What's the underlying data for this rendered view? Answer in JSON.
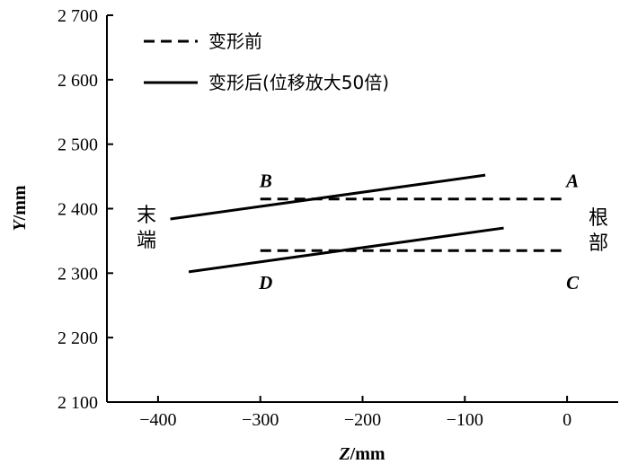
{
  "chart_data": {
    "type": "line",
    "xlabel_italic": "Z",
    "xlabel_unit": "/mm",
    "ylabel_italic": "Y",
    "ylabel_unit": "/mm",
    "xlim": [
      -450,
      50
    ],
    "ylim": [
      2100,
      2700
    ],
    "xticks": [
      {
        "value": -400,
        "label": "−400"
      },
      {
        "value": -300,
        "label": "−300"
      },
      {
        "value": -200,
        "label": "−200"
      },
      {
        "value": -100,
        "label": "−100"
      },
      {
        "value": 0,
        "label": "0"
      }
    ],
    "yticks": [
      {
        "value": 2100,
        "label": "2 100"
      },
      {
        "value": 2200,
        "label": "2 200"
      },
      {
        "value": 2300,
        "label": "2 300"
      },
      {
        "value": 2400,
        "label": "2 400"
      },
      {
        "value": 2500,
        "label": "2 500"
      },
      {
        "value": 2600,
        "label": "2 600"
      },
      {
        "value": 2700,
        "label": "2 700"
      }
    ],
    "legend": [
      {
        "label": "变形前",
        "style": "dashed"
      },
      {
        "label": "变形后(位移放大50倍)",
        "style": "solid"
      }
    ],
    "series": [
      {
        "name": "变形前",
        "style": "dashed",
        "x": [
          -300,
          0
        ],
        "y": [
          2415,
          2415
        ]
      },
      {
        "name": "变形前",
        "style": "dashed",
        "x": [
          -300,
          0
        ],
        "y": [
          2335,
          2335
        ]
      },
      {
        "name": "变形后(位移放大50倍)",
        "style": "solid",
        "x": [
          -388,
          -80
        ],
        "y": [
          2384,
          2452
        ]
      },
      {
        "name": "变形后(位移放大50倍)",
        "style": "solid",
        "x": [
          -370,
          -62
        ],
        "y": [
          2302,
          2370
        ]
      }
    ],
    "point_labels": [
      {
        "text": "A",
        "x": 0,
        "y": 2415,
        "pos": "above"
      },
      {
        "text": "B",
        "x": -300,
        "y": 2415,
        "pos": "above"
      },
      {
        "text": "C",
        "x": 0,
        "y": 2335,
        "pos": "below"
      },
      {
        "text": "D",
        "x": -300,
        "y": 2335,
        "pos": "below"
      }
    ],
    "side_labels": {
      "left": [
        "末",
        "端"
      ],
      "right": [
        "根",
        "部"
      ]
    }
  }
}
